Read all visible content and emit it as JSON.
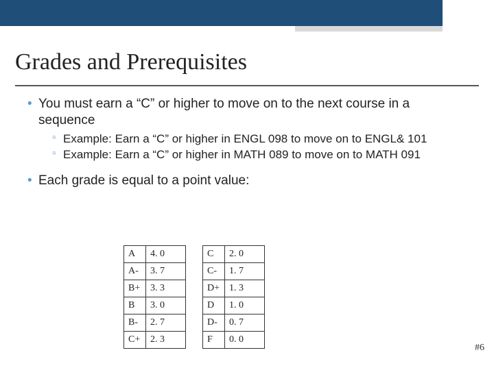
{
  "title": "Grades and Prerequisites",
  "bullets": {
    "first": {
      "text": "You must earn a “C” or higher to move on to the next course in a sequence",
      "subs": [
        "Example: Earn a “C” or higher in ENGL 098 to move on to ENGL& 101",
        "Example: Earn a “C” or higher in MATH 089 to move on to MATH 091"
      ]
    },
    "second": {
      "text": "Each grade is equal to a point value:"
    }
  },
  "grade_table": {
    "left": {
      "rows": [
        [
          "A",
          "4. 0"
        ],
        [
          "A-",
          "3. 7"
        ],
        [
          "B+",
          "3. 3"
        ],
        [
          "B",
          "3. 0"
        ],
        [
          "B-",
          "2. 7"
        ],
        [
          "C+",
          "2. 3"
        ]
      ]
    },
    "right": {
      "rows": [
        [
          "C",
          "2. 0"
        ],
        [
          "C-",
          "1. 7"
        ],
        [
          "D+",
          "1. 3"
        ],
        [
          "D",
          "1. 0"
        ],
        [
          "D-",
          "0. 7"
        ],
        [
          "F",
          "0. 0"
        ]
      ]
    },
    "border_color": "#333333",
    "font_family": "Georgia",
    "font_size_pt": 11
  },
  "colors": {
    "banner": "#1f4e79",
    "banner_light": "#d9d9d9",
    "bullet_accent": "#5b9bd5",
    "text": "#222222",
    "underline": "#555555",
    "background": "#ffffff"
  },
  "page_number": "#6"
}
